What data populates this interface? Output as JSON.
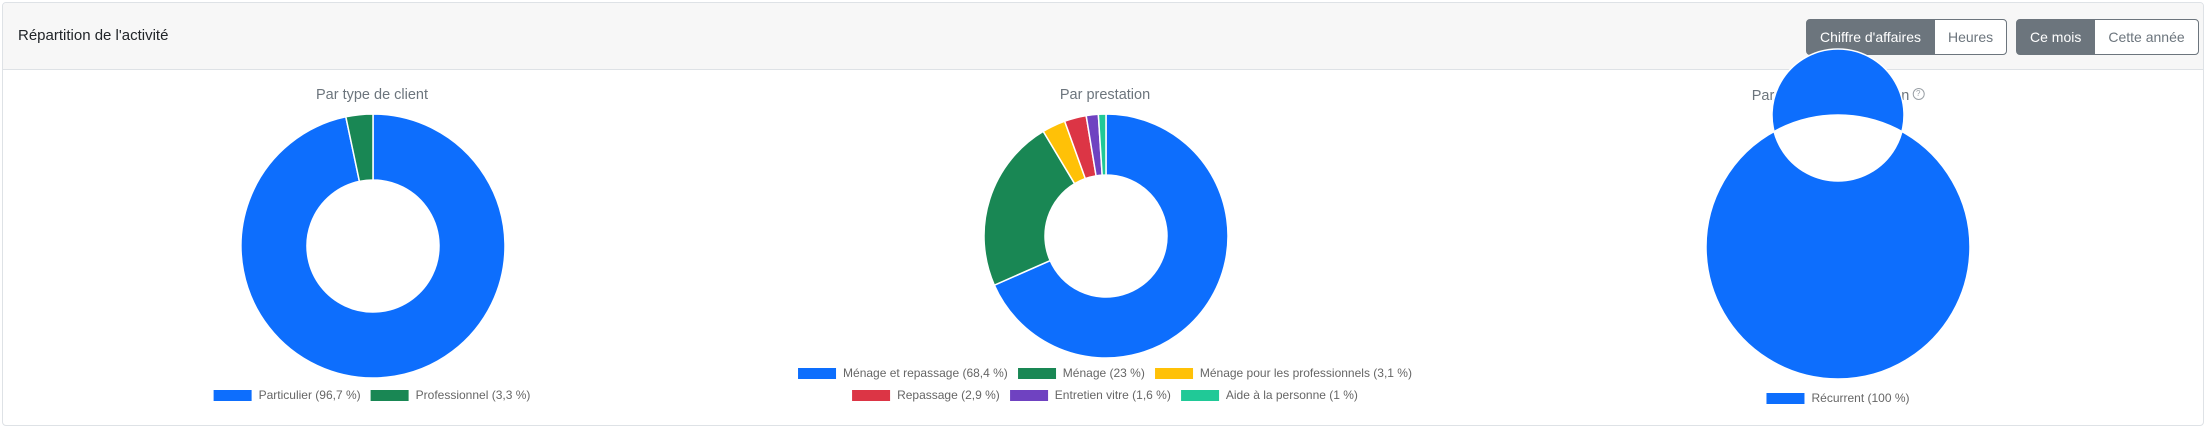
{
  "header": {
    "title": "Répartition de l'activité",
    "metric_toggle": {
      "options": [
        "Chiffre d'affaires",
        "Heures"
      ],
      "selected": "Chiffre d'affaires"
    },
    "period_toggle": {
      "options": [
        "Ce mois",
        "Cette année"
      ],
      "selected": "Ce mois"
    }
  },
  "colors": {
    "blue": "#0d6efd",
    "green": "#198754",
    "yellow": "#ffc107",
    "red": "#dc3545",
    "purple": "#6f42c1",
    "teal": "#20c997"
  },
  "chart_data": [
    {
      "type": "pie",
      "title": "Par type de client",
      "categories": [
        "Particulier (96,7 %)",
        "Professionnel (3,3 %)"
      ],
      "values": [
        96.7,
        3.3
      ],
      "colors": [
        "#0d6efd",
        "#198754"
      ],
      "legend_position": "bottom"
    },
    {
      "type": "pie",
      "title": "Par prestation",
      "categories": [
        "Ménage et repassage (68,4 %)",
        "Ménage (23 %)",
        "Ménage pour les professionnels (3,1 %)",
        "Repassage (2,9 %)",
        "Entretien vitre (1,6 %)",
        "Aide à la personne (1 %)"
      ],
      "values": [
        68.4,
        23,
        3.1,
        2.9,
        1.6,
        1
      ],
      "colors": [
        "#0d6efd",
        "#198754",
        "#ffc107",
        "#dc3545",
        "#6f42c1",
        "#20c997"
      ],
      "legend_position": "bottom"
    },
    {
      "type": "pie",
      "title": "Par nature d'intervention",
      "categories": [
        "Récurrent (100 %)"
      ],
      "values": [
        100
      ],
      "colors": [
        "#0d6efd"
      ],
      "legend_position": "bottom"
    }
  ]
}
